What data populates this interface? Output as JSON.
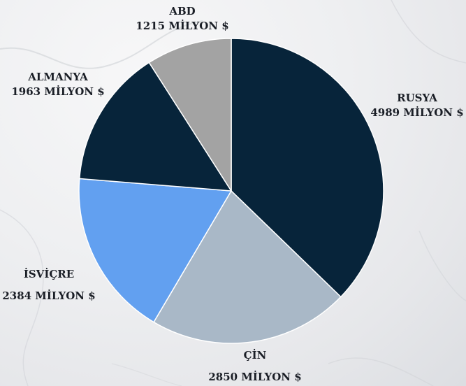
{
  "chart_data": {
    "type": "pie",
    "title": "",
    "categories": [
      "RUSYA",
      "ÇİN",
      "İSVİÇRE",
      "ALMANYA",
      "ABD"
    ],
    "values": [
      4989,
      2850,
      2384,
      1963,
      1215
    ],
    "value_labels": [
      "4989 MİLYON $",
      "2850 MİLYON $",
      "2384 MİLYON $",
      "1963 MİLYON $",
      "1215 MİLYON $"
    ],
    "colors": [
      "#07243a",
      "#a9b8c7",
      "#62a0f0",
      "#07243a",
      "#a3a3a3"
    ],
    "start": "12 o'clock",
    "direction": "clockwise",
    "legend": "none"
  }
}
